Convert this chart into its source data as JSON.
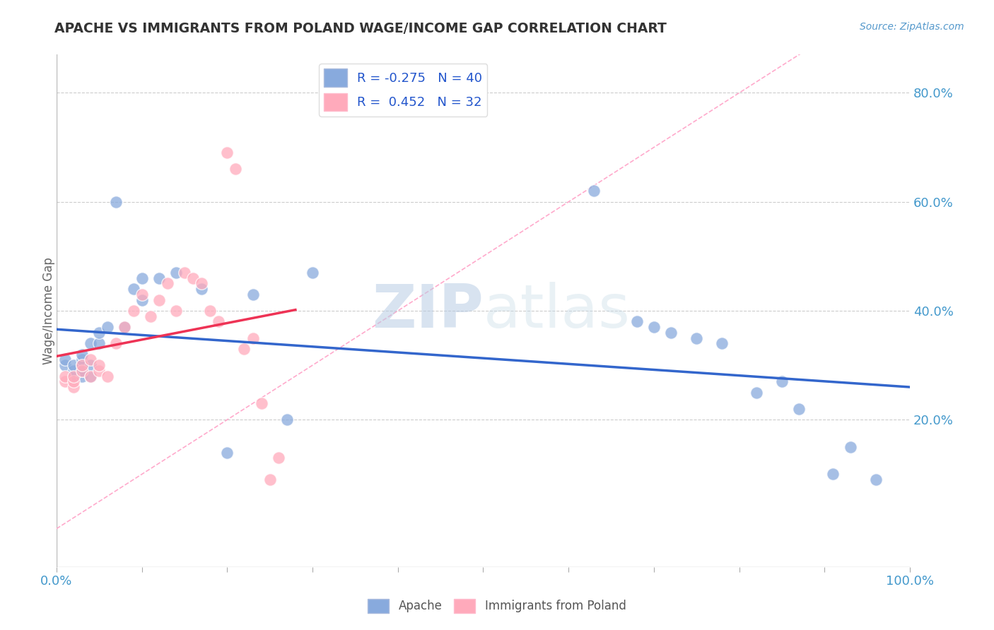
{
  "title": "APACHE VS IMMIGRANTS FROM POLAND WAGE/INCOME GAP CORRELATION CHART",
  "source": "Source: ZipAtlas.com",
  "ylabel": "Wage/Income Gap",
  "watermark_zip": "ZIP",
  "watermark_atlas": "atlas",
  "legend_apache": "Apache",
  "legend_poland": "Immigrants from Poland",
  "R_apache": -0.275,
  "N_apache": 40,
  "R_poland": 0.452,
  "N_poland": 32,
  "color_apache": "#88aadd",
  "color_poland": "#ffaabb",
  "color_trendline_apache": "#3366cc",
  "color_trendline_poland": "#ee3355",
  "color_diag": "#ffaacc",
  "xlim": [
    0.0,
    1.0
  ],
  "ylim": [
    -0.07,
    0.87
  ],
  "xticks": [
    0.0,
    0.1,
    0.2,
    0.3,
    0.4,
    0.5,
    0.6,
    0.7,
    0.8,
    0.9,
    1.0
  ],
  "xtick_labels_show": [
    0.0,
    0.5,
    1.0
  ],
  "ytick_positions": [
    0.2,
    0.4,
    0.6,
    0.8
  ],
  "ytick_labels": [
    "20.0%",
    "40.0%",
    "60.0%",
    "80.0%"
  ],
  "apache_x": [
    0.01,
    0.01,
    0.02,
    0.02,
    0.02,
    0.03,
    0.03,
    0.03,
    0.03,
    0.03,
    0.04,
    0.04,
    0.04,
    0.05,
    0.05,
    0.06,
    0.07,
    0.08,
    0.09,
    0.1,
    0.1,
    0.12,
    0.14,
    0.17,
    0.2,
    0.23,
    0.27,
    0.3,
    0.63,
    0.68,
    0.7,
    0.72,
    0.75,
    0.78,
    0.82,
    0.85,
    0.87,
    0.91,
    0.93,
    0.96
  ],
  "apache_y": [
    0.3,
    0.31,
    0.28,
    0.29,
    0.3,
    0.28,
    0.29,
    0.3,
    0.31,
    0.32,
    0.28,
    0.3,
    0.34,
    0.34,
    0.36,
    0.37,
    0.6,
    0.37,
    0.44,
    0.42,
    0.46,
    0.46,
    0.47,
    0.44,
    0.14,
    0.43,
    0.2,
    0.47,
    0.62,
    0.38,
    0.37,
    0.36,
    0.35,
    0.34,
    0.25,
    0.27,
    0.22,
    0.1,
    0.15,
    0.09
  ],
  "poland_x": [
    0.01,
    0.01,
    0.02,
    0.02,
    0.02,
    0.03,
    0.03,
    0.04,
    0.04,
    0.05,
    0.05,
    0.06,
    0.07,
    0.08,
    0.09,
    0.1,
    0.11,
    0.12,
    0.13,
    0.14,
    0.15,
    0.16,
    0.17,
    0.18,
    0.19,
    0.2,
    0.21,
    0.22,
    0.23,
    0.24,
    0.25,
    0.26
  ],
  "poland_y": [
    0.27,
    0.28,
    0.26,
    0.27,
    0.28,
    0.29,
    0.3,
    0.28,
    0.31,
    0.29,
    0.3,
    0.28,
    0.34,
    0.37,
    0.4,
    0.43,
    0.39,
    0.42,
    0.45,
    0.4,
    0.47,
    0.46,
    0.45,
    0.4,
    0.38,
    0.69,
    0.66,
    0.33,
    0.35,
    0.23,
    0.09,
    0.13
  ]
}
